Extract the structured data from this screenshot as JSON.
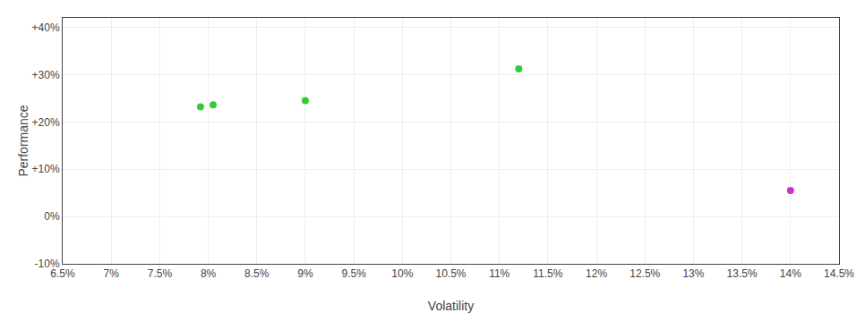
{
  "chart_data": {
    "type": "scatter",
    "xlabel": "Volatility",
    "ylabel": "Performance",
    "x": [
      0.0792,
      0.0805,
      0.09,
      0.112,
      0.14
    ],
    "values": [
      0.232,
      0.236,
      0.245,
      0.312,
      0.055
    ],
    "colors": [
      "#33cc33",
      "#33cc33",
      "#33cc33",
      "#33cc33",
      "#cc33cc"
    ],
    "xlim": [
      0.065,
      0.145
    ],
    "ylim": [
      -0.1,
      0.42
    ],
    "xticks": [
      {
        "value": 0.065,
        "label": "6.5%"
      },
      {
        "value": 0.07,
        "label": "7%"
      },
      {
        "value": 0.075,
        "label": "7.5%"
      },
      {
        "value": 0.08,
        "label": "8%"
      },
      {
        "value": 0.085,
        "label": "8.5%"
      },
      {
        "value": 0.09,
        "label": "9%"
      },
      {
        "value": 0.095,
        "label": "9.5%"
      },
      {
        "value": 0.1,
        "label": "10%"
      },
      {
        "value": 0.105,
        "label": "10.5%"
      },
      {
        "value": 0.11,
        "label": "11%"
      },
      {
        "value": 0.115,
        "label": "11.5%"
      },
      {
        "value": 0.12,
        "label": "12%"
      },
      {
        "value": 0.125,
        "label": "12.5%"
      },
      {
        "value": 0.13,
        "label": "13%"
      },
      {
        "value": 0.135,
        "label": "13.5%"
      },
      {
        "value": 0.14,
        "label": "14%"
      },
      {
        "value": 0.145,
        "label": "14.5%"
      }
    ],
    "yticks": [
      {
        "value": -0.1,
        "label": "-10%"
      },
      {
        "value": 0.0,
        "label": "0%"
      },
      {
        "value": 0.1,
        "label": "+10%"
      },
      {
        "value": 0.2,
        "label": "+20%"
      },
      {
        "value": 0.3,
        "label": "+30%"
      },
      {
        "value": 0.4,
        "label": "+40%"
      }
    ],
    "grid": true
  }
}
